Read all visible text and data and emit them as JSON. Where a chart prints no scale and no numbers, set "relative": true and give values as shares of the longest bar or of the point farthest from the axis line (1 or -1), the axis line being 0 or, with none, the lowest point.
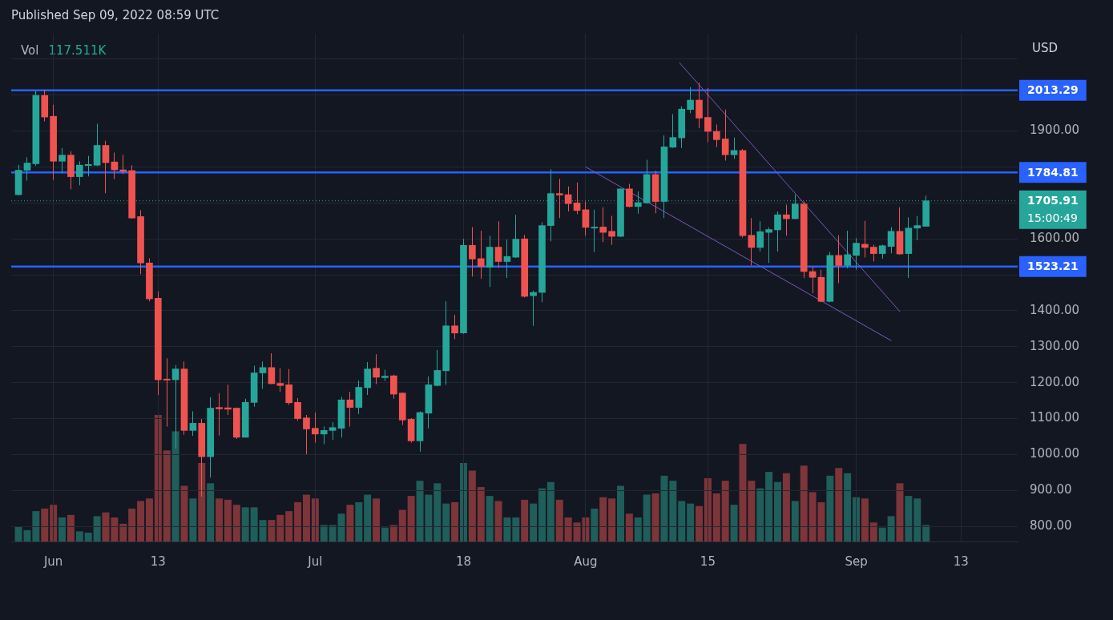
{
  "chart_data": [
    {
      "type": "candlestick",
      "title": "Published Sep 09, 2022 08:59 UTC",
      "ylabel": "USD",
      "annotations": [
        "15:00:49"
      ],
      "x": [
        "2022-05-28",
        "2022-05-29",
        "2022-05-30",
        "2022-05-31",
        "2022-06-01",
        "2022-06-02",
        "2022-06-03",
        "2022-06-04",
        "2022-06-05",
        "2022-06-06",
        "2022-06-07",
        "2022-06-08",
        "2022-06-09",
        "2022-06-10",
        "2022-06-11",
        "2022-06-12",
        "2022-06-13",
        "2022-06-14",
        "2022-06-15",
        "2022-06-16",
        "2022-06-17",
        "2022-06-18",
        "2022-06-19",
        "2022-06-20",
        "2022-06-21",
        "2022-06-22",
        "2022-06-23",
        "2022-06-24",
        "2022-06-25",
        "2022-06-26",
        "2022-06-27",
        "2022-06-28",
        "2022-06-29",
        "2022-06-30",
        "2022-07-01",
        "2022-07-02",
        "2022-07-03",
        "2022-07-04",
        "2022-07-05",
        "2022-07-06",
        "2022-07-07",
        "2022-07-08",
        "2022-07-09",
        "2022-07-10",
        "2022-07-11",
        "2022-07-12",
        "2022-07-13",
        "2022-07-14",
        "2022-07-15",
        "2022-07-16",
        "2022-07-17",
        "2022-07-18",
        "2022-07-19",
        "2022-07-20",
        "2022-07-21",
        "2022-07-22",
        "2022-07-23",
        "2022-07-24",
        "2022-07-25",
        "2022-07-26",
        "2022-07-27",
        "2022-07-28",
        "2022-07-29",
        "2022-07-30",
        "2022-07-31",
        "2022-08-01",
        "2022-08-02",
        "2022-08-03",
        "2022-08-04",
        "2022-08-05",
        "2022-08-06",
        "2022-08-07",
        "2022-08-08",
        "2022-08-09",
        "2022-08-10",
        "2022-08-11",
        "2022-08-12",
        "2022-08-13",
        "2022-08-14",
        "2022-08-15",
        "2022-08-16",
        "2022-08-17",
        "2022-08-18",
        "2022-08-19",
        "2022-08-20",
        "2022-08-21",
        "2022-08-22",
        "2022-08-23",
        "2022-08-24",
        "2022-08-25",
        "2022-08-26",
        "2022-08-27",
        "2022-08-28",
        "2022-08-29",
        "2022-08-30",
        "2022-08-31",
        "2022-09-01",
        "2022-09-02",
        "2022-09-03",
        "2022-09-04",
        "2022-09-05",
        "2022-09-06",
        "2022-09-07",
        "2022-09-08",
        "2022-09-09"
      ],
      "xlim": [
        "2022-05-27T04:00",
        "2022-09-19T12:00"
      ],
      "xticks": [
        {
          "value": "2022-06-01",
          "label": "Jun"
        },
        {
          "value": "2022-06-13",
          "label": "13"
        },
        {
          "value": "2022-07-01",
          "label": "Jul"
        },
        {
          "value": "2022-07-18",
          "label": "18"
        },
        {
          "value": "2022-08-01",
          "label": "Aug"
        },
        {
          "value": "2022-08-15",
          "label": "15"
        },
        {
          "value": "2022-09-01",
          "label": "Sep"
        },
        {
          "value": "2022-09-13",
          "label": "13"
        }
      ],
      "ylim": [
        758,
        2171
      ],
      "yticks": [
        {
          "value": 800,
          "label": "800.00"
        },
        {
          "value": 900,
          "label": "900.00"
        },
        {
          "value": 1000,
          "label": "1000.00"
        },
        {
          "value": 1100,
          "label": "1100.00"
        },
        {
          "value": 1200,
          "label": "1200.00"
        },
        {
          "value": 1300,
          "label": "1300.00"
        },
        {
          "value": 1400,
          "label": "1400.00"
        },
        {
          "value": 1500,
          "label": null
        },
        {
          "value": 1600,
          "label": "1600.00"
        },
        {
          "value": 1700,
          "label": null
        },
        {
          "value": 1800,
          "label": null
        },
        {
          "value": 1900,
          "label": "1900.00"
        },
        {
          "value": 2000,
          "label": null
        },
        {
          "value": 2100,
          "label": null
        }
      ],
      "ohlc": [
        [
          1723,
          1806,
          1720,
          1791
        ],
        [
          1791,
          1827,
          1762,
          1811
        ],
        [
          1809,
          2011,
          1803,
          1999
        ],
        [
          1999,
          2015,
          1927,
          1939
        ],
        [
          1941,
          1973,
          1764,
          1816
        ],
        [
          1816,
          1853,
          1782,
          1833
        ],
        [
          1833,
          1844,
          1738,
          1773
        ],
        [
          1773,
          1816,
          1749,
          1805
        ],
        [
          1804,
          1831,
          1774,
          1807
        ],
        [
          1805,
          1920,
          1802,
          1860
        ],
        [
          1860,
          1873,
          1727,
          1812
        ],
        [
          1814,
          1840,
          1766,
          1792
        ],
        [
          1792,
          1834,
          1780,
          1788
        ],
        [
          1790,
          1805,
          1656,
          1658
        ],
        [
          1662,
          1680,
          1502,
          1533
        ],
        [
          1533,
          1546,
          1426,
          1433
        ],
        [
          1435,
          1454,
          1166,
          1208
        ],
        [
          1210,
          1268,
          1078,
          1207
        ],
        [
          1208,
          1249,
          1017,
          1238
        ],
        [
          1238,
          1259,
          1055,
          1067
        ],
        [
          1067,
          1120,
          1052,
          1087
        ],
        [
          1087,
          1099,
          883,
          994
        ],
        [
          994,
          1159,
          936,
          1129
        ],
        [
          1131,
          1171,
          1053,
          1127
        ],
        [
          1130,
          1194,
          1110,
          1126
        ],
        [
          1129,
          1131,
          1043,
          1048
        ],
        [
          1048,
          1155,
          1047,
          1145
        ],
        [
          1145,
          1247,
          1133,
          1227
        ],
        [
          1227,
          1259,
          1183,
          1242
        ],
        [
          1242,
          1282,
          1196,
          1197
        ],
        [
          1198,
          1240,
          1175,
          1192
        ],
        [
          1194,
          1238,
          1138,
          1144
        ],
        [
          1145,
          1157,
          1094,
          1100
        ],
        [
          1102,
          1110,
          1001,
          1071
        ],
        [
          1073,
          1117,
          1033,
          1057
        ],
        [
          1057,
          1078,
          1029,
          1067
        ],
        [
          1067,
          1090,
          1041,
          1075
        ],
        [
          1073,
          1161,
          1047,
          1152
        ],
        [
          1152,
          1175,
          1078,
          1131
        ],
        [
          1131,
          1206,
          1113,
          1187
        ],
        [
          1186,
          1257,
          1166,
          1238
        ],
        [
          1240,
          1279,
          1196,
          1215
        ],
        [
          1214,
          1236,
          1205,
          1218
        ],
        [
          1219,
          1222,
          1155,
          1168
        ],
        [
          1171,
          1172,
          1082,
          1096
        ],
        [
          1098,
          1101,
          1033,
          1038
        ],
        [
          1038,
          1120,
          1008,
          1117
        ],
        [
          1115,
          1217,
          1073,
          1194
        ],
        [
          1192,
          1291,
          1190,
          1234
        ],
        [
          1233,
          1426,
          1194,
          1358
        ],
        [
          1358,
          1389,
          1321,
          1338
        ],
        [
          1338,
          1600,
          1336,
          1582
        ],
        [
          1582,
          1633,
          1495,
          1544
        ],
        [
          1545,
          1623,
          1489,
          1523
        ],
        [
          1521,
          1609,
          1466,
          1577
        ],
        [
          1577,
          1649,
          1519,
          1537
        ],
        [
          1537,
          1598,
          1491,
          1551
        ],
        [
          1549,
          1667,
          1547,
          1599
        ],
        [
          1600,
          1611,
          1437,
          1440
        ],
        [
          1442,
          1456,
          1358,
          1451
        ],
        [
          1451,
          1646,
          1424,
          1637
        ],
        [
          1637,
          1794,
          1593,
          1726
        ],
        [
          1726,
          1767,
          1658,
          1722
        ],
        [
          1723,
          1746,
          1676,
          1698
        ],
        [
          1700,
          1757,
          1669,
          1679
        ],
        [
          1681,
          1704,
          1609,
          1632
        ],
        [
          1630,
          1681,
          1563,
          1633
        ],
        [
          1633,
          1688,
          1591,
          1618
        ],
        [
          1621,
          1664,
          1584,
          1607
        ],
        [
          1607,
          1740,
          1605,
          1739
        ],
        [
          1739,
          1753,
          1688,
          1690
        ],
        [
          1690,
          1732,
          1670,
          1701
        ],
        [
          1700,
          1820,
          1698,
          1779
        ],
        [
          1779,
          1790,
          1671,
          1704
        ],
        [
          1704,
          1888,
          1658,
          1856
        ],
        [
          1855,
          1947,
          1853,
          1882
        ],
        [
          1881,
          1969,
          1853,
          1961
        ],
        [
          1960,
          2022,
          1950,
          1986
        ],
        [
          1986,
          2034,
          1908,
          1936
        ],
        [
          1938,
          2020,
          1869,
          1899
        ],
        [
          1899,
          1918,
          1855,
          1876
        ],
        [
          1878,
          1960,
          1818,
          1834
        ],
        [
          1834,
          1882,
          1823,
          1846
        ],
        [
          1846,
          1850,
          1604,
          1609
        ],
        [
          1610,
          1658,
          1526,
          1576
        ],
        [
          1576,
          1649,
          1565,
          1620
        ],
        [
          1618,
          1632,
          1533,
          1626
        ],
        [
          1625,
          1676,
          1565,
          1667
        ],
        [
          1667,
          1695,
          1609,
          1656
        ],
        [
          1656,
          1723,
          1655,
          1697
        ],
        [
          1697,
          1704,
          1491,
          1509
        ],
        [
          1509,
          1523,
          1449,
          1493
        ],
        [
          1493,
          1514,
          1424,
          1426
        ],
        [
          1426,
          1563,
          1424,
          1554
        ],
        [
          1554,
          1610,
          1477,
          1526
        ],
        [
          1526,
          1623,
          1518,
          1556
        ],
        [
          1554,
          1602,
          1514,
          1588
        ],
        [
          1585,
          1650,
          1548,
          1576
        ],
        [
          1577,
          1584,
          1537,
          1559
        ],
        [
          1559,
          1584,
          1545,
          1581
        ],
        [
          1579,
          1633,
          1560,
          1621
        ],
        [
          1621,
          1688,
          1556,
          1558
        ],
        [
          1559,
          1660,
          1491,
          1630
        ],
        [
          1630,
          1664,
          1596,
          1637
        ],
        [
          1635,
          1720,
          1634,
          1705.91
        ]
      ],
      "colors": [
        "#26a69a",
        "#26a69a",
        "#26a69a",
        "#ef5350",
        "#ef5350",
        "#26a69a",
        "#ef5350",
        "#26a69a",
        "#26a69a",
        "#26a69a",
        "#ef5350",
        "#ef5350",
        "#ef5350",
        "#ef5350",
        "#ef5350",
        "#ef5350",
        "#ef5350",
        "#ef5350",
        "#26a69a",
        "#ef5350",
        "#26a69a",
        "#ef5350",
        "#26a69a",
        "#ef5350",
        "#ef5350",
        "#ef5350",
        "#26a69a",
        "#26a69a",
        "#26a69a",
        "#ef5350",
        "#ef5350",
        "#ef5350",
        "#ef5350",
        "#ef5350",
        "#ef5350",
        "#26a69a",
        "#26a69a",
        "#26a69a",
        "#ef5350",
        "#26a69a",
        "#26a69a",
        "#ef5350",
        "#26a69a",
        "#ef5350",
        "#ef5350",
        "#ef5350",
        "#26a69a",
        "#26a69a",
        "#26a69a",
        "#26a69a",
        "#ef5350",
        "#26a69a",
        "#ef5350",
        "#ef5350",
        "#26a69a",
        "#ef5350",
        "#26a69a",
        "#26a69a",
        "#ef5350",
        "#26a69a",
        "#26a69a",
        "#26a69a",
        "#ef5350",
        "#ef5350",
        "#ef5350",
        "#ef5350",
        "#26a69a",
        "#ef5350",
        "#ef5350",
        "#26a69a",
        "#ef5350",
        "#26a69a",
        "#26a69a",
        "#ef5350",
        "#26a69a",
        "#26a69a",
        "#26a69a",
        "#26a69a",
        "#ef5350",
        "#ef5350",
        "#ef5350",
        "#ef5350",
        "#26a69a",
        "#ef5350",
        "#ef5350",
        "#26a69a",
        "#26a69a",
        "#26a69a",
        "#ef5350",
        "#26a69a",
        "#ef5350",
        "#ef5350",
        "#ef5350",
        "#26a69a",
        "#ef5350",
        "#26a69a",
        "#26a69a",
        "#ef5350",
        "#ef5350",
        "#26a69a",
        "#26a69a",
        "#ef5350",
        "#26a69a",
        "#26a69a",
        "#26a69a"
      ],
      "series": [
        {
          "type": "line",
          "x": [
            "2022-08-11T18:00",
            "2022-09-06"
          ],
          "values": [
            2090,
            1398
          ],
          "color": "#7e57c2"
        },
        {
          "type": "line",
          "x": [
            "2022-08-01",
            "2022-09-05"
          ],
          "values": [
            1800,
            1317
          ],
          "color": "#7e57c2"
        }
      ],
      "ref_lines": [
        {
          "axis": "y",
          "value": 2013.29,
          "label": "2013.29",
          "color": "#2962ff"
        },
        {
          "axis": "y",
          "value": 1784.81,
          "label": "1784.81",
          "color": "#2962ff"
        },
        {
          "axis": "y",
          "value": 1523.21,
          "label": "1523.21",
          "color": "#2962ff"
        },
        {
          "axis": "y",
          "value": 1705.91,
          "label": "1705.91",
          "color": "#26a69a",
          "line_style": "dotted"
        }
      ],
      "grid": true
    },
    {
      "type": "bar",
      "relative": true,
      "annotations": [
        "Vol",
        "117.511K"
      ],
      "x": [
        "2022-05-28",
        "2022-05-29",
        "2022-05-30",
        "2022-05-31",
        "2022-06-01",
        "2022-06-02",
        "2022-06-03",
        "2022-06-04",
        "2022-06-05",
        "2022-06-06",
        "2022-06-07",
        "2022-06-08",
        "2022-06-09",
        "2022-06-10",
        "2022-06-11",
        "2022-06-12",
        "2022-06-13",
        "2022-06-14",
        "2022-06-15",
        "2022-06-16",
        "2022-06-17",
        "2022-06-18",
        "2022-06-19",
        "2022-06-20",
        "2022-06-21",
        "2022-06-22",
        "2022-06-23",
        "2022-06-24",
        "2022-06-25",
        "2022-06-26",
        "2022-06-27",
        "2022-06-28",
        "2022-06-29",
        "2022-06-30",
        "2022-07-01",
        "2022-07-02",
        "2022-07-03",
        "2022-07-04",
        "2022-07-05",
        "2022-07-06",
        "2022-07-07",
        "2022-07-08",
        "2022-07-09",
        "2022-07-10",
        "2022-07-11",
        "2022-07-12",
        "2022-07-13",
        "2022-07-14",
        "2022-07-15",
        "2022-07-16",
        "2022-07-17",
        "2022-07-18",
        "2022-07-19",
        "2022-07-20",
        "2022-07-21",
        "2022-07-22",
        "2022-07-23",
        "2022-07-24",
        "2022-07-25",
        "2022-07-26",
        "2022-07-27",
        "2022-07-28",
        "2022-07-29",
        "2022-07-30",
        "2022-07-31",
        "2022-08-01",
        "2022-08-02",
        "2022-08-03",
        "2022-08-04",
        "2022-08-05",
        "2022-08-06",
        "2022-08-07",
        "2022-08-08",
        "2022-08-09",
        "2022-08-10",
        "2022-08-11",
        "2022-08-12",
        "2022-08-13",
        "2022-08-14",
        "2022-08-15",
        "2022-08-16",
        "2022-08-17",
        "2022-08-18",
        "2022-08-19",
        "2022-08-20",
        "2022-08-21",
        "2022-08-22",
        "2022-08-23",
        "2022-08-24",
        "2022-08-25",
        "2022-08-26",
        "2022-08-27",
        "2022-08-28",
        "2022-08-29",
        "2022-08-30",
        "2022-08-31",
        "2022-09-01",
        "2022-09-02",
        "2022-09-03",
        "2022-09-04",
        "2022-09-05",
        "2022-09-06",
        "2022-09-07",
        "2022-09-08",
        "2022-09-09"
      ],
      "xlim": [
        "2022-05-27T04:00",
        "2022-09-19T12:00"
      ],
      "values": [
        0.12,
        0.09,
        0.24,
        0.26,
        0.29,
        0.19,
        0.21,
        0.08,
        0.07,
        0.2,
        0.23,
        0.19,
        0.14,
        0.26,
        0.32,
        0.34,
        1,
        0.72,
        0.87,
        0.44,
        0.34,
        0.62,
        0.46,
        0.34,
        0.33,
        0.29,
        0.27,
        0.27,
        0.17,
        0.17,
        0.21,
        0.24,
        0.31,
        0.37,
        0.34,
        0.13,
        0.13,
        0.22,
        0.29,
        0.31,
        0.37,
        0.34,
        0.11,
        0.13,
        0.25,
        0.36,
        0.48,
        0.37,
        0.46,
        0.3,
        0.31,
        0.62,
        0.56,
        0.43,
        0.36,
        0.32,
        0.19,
        0.19,
        0.33,
        0.3,
        0.42,
        0.47,
        0.33,
        0.19,
        0.15,
        0.19,
        0.26,
        0.35,
        0.34,
        0.44,
        0.22,
        0.19,
        0.37,
        0.38,
        0.52,
        0.48,
        0.32,
        0.3,
        0.28,
        0.5,
        0.38,
        0.48,
        0.29,
        0.77,
        0.48,
        0.42,
        0.55,
        0.47,
        0.54,
        0.32,
        0.6,
        0.39,
        0.31,
        0.52,
        0.58,
        0.54,
        0.35,
        0.34,
        0.15,
        0.11,
        0.2,
        0.46,
        0.36,
        0.34,
        0.13
      ],
      "colors": [
        "#1f5e5a",
        "#1f5e5a",
        "#1f5e5a",
        "#7d3539",
        "#7d3539",
        "#1f5e5a",
        "#7d3539",
        "#1f5e5a",
        "#1f5e5a",
        "#1f5e5a",
        "#7d3539",
        "#7d3539",
        "#7d3539",
        "#7d3539",
        "#7d3539",
        "#7d3539",
        "#7d3539",
        "#7d3539",
        "#1f5e5a",
        "#7d3539",
        "#1f5e5a",
        "#7d3539",
        "#1f5e5a",
        "#7d3539",
        "#7d3539",
        "#7d3539",
        "#1f5e5a",
        "#1f5e5a",
        "#1f5e5a",
        "#7d3539",
        "#7d3539",
        "#7d3539",
        "#7d3539",
        "#7d3539",
        "#7d3539",
        "#1f5e5a",
        "#1f5e5a",
        "#1f5e5a",
        "#7d3539",
        "#1f5e5a",
        "#1f5e5a",
        "#7d3539",
        "#1f5e5a",
        "#7d3539",
        "#7d3539",
        "#7d3539",
        "#1f5e5a",
        "#1f5e5a",
        "#1f5e5a",
        "#1f5e5a",
        "#7d3539",
        "#1f5e5a",
        "#7d3539",
        "#7d3539",
        "#1f5e5a",
        "#7d3539",
        "#1f5e5a",
        "#1f5e5a",
        "#7d3539",
        "#1f5e5a",
        "#1f5e5a",
        "#1f5e5a",
        "#7d3539",
        "#7d3539",
        "#7d3539",
        "#7d3539",
        "#1f5e5a",
        "#7d3539",
        "#7d3539",
        "#1f5e5a",
        "#7d3539",
        "#1f5e5a",
        "#1f5e5a",
        "#7d3539",
        "#1f5e5a",
        "#1f5e5a",
        "#1f5e5a",
        "#1f5e5a",
        "#7d3539",
        "#7d3539",
        "#7d3539",
        "#7d3539",
        "#1f5e5a",
        "#7d3539",
        "#7d3539",
        "#1f5e5a",
        "#1f5e5a",
        "#1f5e5a",
        "#7d3539",
        "#1f5e5a",
        "#7d3539",
        "#7d3539",
        "#7d3539",
        "#1f5e5a",
        "#7d3539",
        "#1f5e5a",
        "#1f5e5a",
        "#7d3539",
        "#7d3539",
        "#1f5e5a",
        "#1f5e5a",
        "#7d3539",
        "#1f5e5a",
        "#1f5e5a",
        "#1f5e5a"
      ]
    }
  ]
}
